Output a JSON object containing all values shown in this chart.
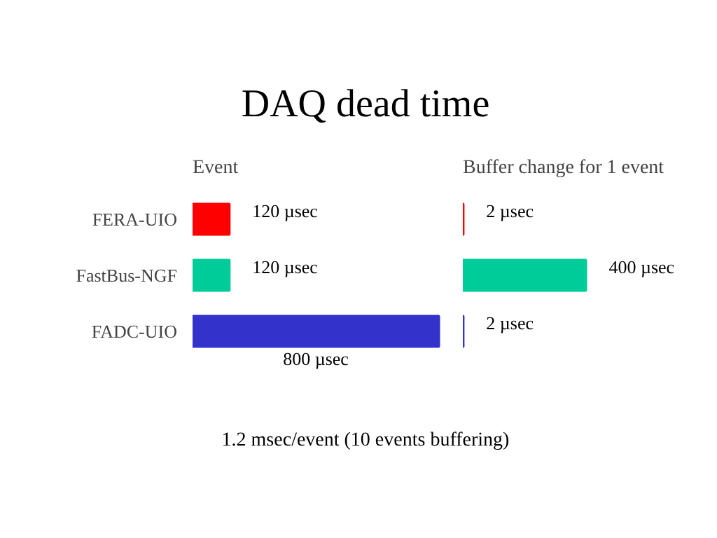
{
  "chart_data": [
    {
      "type": "bar",
      "orientation": "horizontal",
      "title": "DAQ dead time",
      "subtitle": "Event",
      "categories": [
        "FERA-UIO",
        "FastBus-NGF",
        "FADC-UIO"
      ],
      "values": [
        120,
        120,
        800
      ],
      "colors": [
        "#ff0000",
        "#00cc99",
        "#3333cc"
      ],
      "value_labels": [
        "120 µsec",
        "120 µsec",
        "800 µsec"
      ],
      "annotations": [
        "1.2 msec/event (10 events buffering)"
      ]
    },
    {
      "type": "bar",
      "orientation": "horizontal",
      "title": "Buffer change for 1 event",
      "categories": [
        null,
        null,
        null
      ],
      "values": [
        2,
        400,
        2
      ],
      "colors": [
        "#ff0000",
        "#00cc99",
        "#3333cc"
      ],
      "value_labels": [
        "2 µsec",
        "400 µsec",
        "2 µsec"
      ]
    }
  ]
}
